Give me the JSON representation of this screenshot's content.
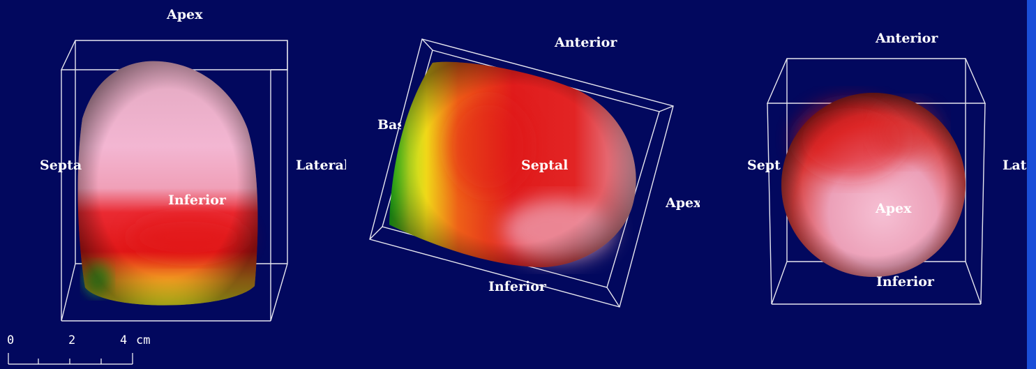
{
  "colors": {
    "background": "#02085e",
    "edge_bar": "#1a4ed8",
    "bounding_box": "#e6e6ef",
    "label": "#ffffff"
  },
  "views": [
    {
      "name": "view-1",
      "labels": {
        "top": "Apex",
        "left": "Septal",
        "right": "Lateral",
        "center": "Inferior"
      }
    },
    {
      "name": "view-2",
      "labels": {
        "top": "Anterior",
        "left": "Base",
        "center": "Septal",
        "right": "Apex",
        "bottom": "Inferior"
      }
    },
    {
      "name": "view-3",
      "labels": {
        "top": "Anterior",
        "left": "Septal",
        "right": "Lateral",
        "center": "Apex",
        "bottom": "Inferior"
      }
    }
  ],
  "scale_bar": {
    "ticks": [
      "0",
      "2",
      "4"
    ],
    "unit": "cm"
  }
}
